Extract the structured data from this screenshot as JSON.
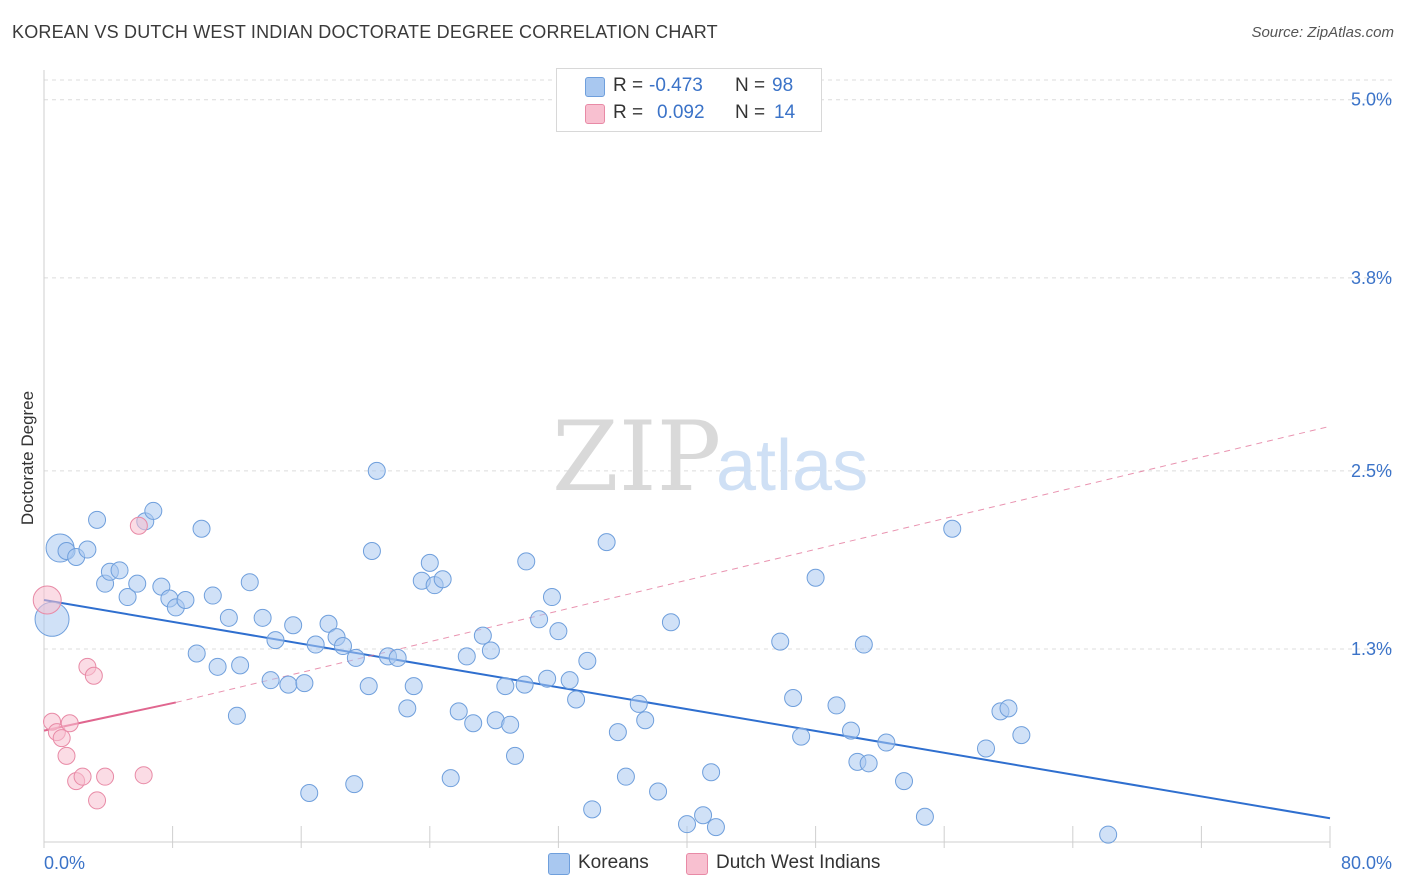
{
  "title": "KOREAN VS DUTCH WEST INDIAN DOCTORATE DEGREE CORRELATION CHART",
  "source": "Source: ZipAtlas.com",
  "watermark": {
    "zip": "ZIP",
    "atlas": "atlas"
  },
  "legend": {
    "rows": [
      {
        "r_label": "R =",
        "r_value": "-0.473",
        "n_label": "N =",
        "n_value": "98",
        "color": "#a9c8f0",
        "border": "#6f9fdc"
      },
      {
        "r_label": "R =",
        "r_value": "0.092",
        "n_label": "N =",
        "n_value": "14",
        "color": "#f8c0d0",
        "border": "#e88aa6"
      }
    ]
  },
  "bottom_legend": [
    {
      "label": "Koreans",
      "color": "#a9c8f0",
      "border": "#6f9fdc"
    },
    {
      "label": "Dutch West Indians",
      "color": "#f8c0d0",
      "border": "#e88aa6"
    }
  ],
  "chart_data": {
    "type": "scatter",
    "title": "KOREAN VS DUTCH WEST INDIAN DOCTORATE DEGREE CORRELATION CHART",
    "xlabel": "",
    "ylabel": "Doctorate Degree",
    "xlim": [
      0,
      80
    ],
    "ylim": [
      0,
      5.2
    ],
    "y_ticks": [
      {
        "value": 1.3,
        "label": "1.3%"
      },
      {
        "value": 2.5,
        "label": "2.5%"
      },
      {
        "value": 3.8,
        "label": "3.8%"
      },
      {
        "value": 5.0,
        "label": "5.0%"
      }
    ],
    "x_tick_labels": [
      {
        "value": 0,
        "label": "0.0%"
      },
      {
        "value": 80,
        "label": "80.0%"
      }
    ],
    "x_minor_ticks": [
      0,
      8,
      16,
      24,
      32,
      40,
      48,
      56,
      64,
      72,
      80
    ],
    "grid": true,
    "series": [
      {
        "name": "Koreans",
        "color": "#a9c8f0",
        "stroke": "#6f9fdc",
        "trend": {
          "x": [
            0,
            80
          ],
          "y": [
            1.63,
            0.16
          ],
          "style": "solid",
          "color": "#2f6fcf"
        },
        "points": [
          [
            0.5,
            1.5,
            "L"
          ],
          [
            1.0,
            1.98,
            "M"
          ],
          [
            1.4,
            1.96
          ],
          [
            2.0,
            1.92
          ],
          [
            2.7,
            1.97
          ],
          [
            3.3,
            2.17
          ],
          [
            3.8,
            1.74
          ],
          [
            4.1,
            1.82
          ],
          [
            4.7,
            1.83
          ],
          [
            5.2,
            1.65
          ],
          [
            5.8,
            1.74
          ],
          [
            6.3,
            2.16
          ],
          [
            6.8,
            2.23
          ],
          [
            7.3,
            1.72
          ],
          [
            7.8,
            1.64
          ],
          [
            8.2,
            1.58
          ],
          [
            8.8,
            1.63
          ],
          [
            9.5,
            1.27
          ],
          [
            9.8,
            2.11
          ],
          [
            10.5,
            1.66
          ],
          [
            10.8,
            1.18
          ],
          [
            11.5,
            1.51
          ],
          [
            12.0,
            0.85
          ],
          [
            12.2,
            1.19
          ],
          [
            12.8,
            1.75
          ],
          [
            13.6,
            1.51
          ],
          [
            14.1,
            1.09
          ],
          [
            14.4,
            1.36
          ],
          [
            15.2,
            1.06
          ],
          [
            15.5,
            1.46
          ],
          [
            16.2,
            1.07
          ],
          [
            16.5,
            0.33
          ],
          [
            16.9,
            1.33
          ],
          [
            17.7,
            1.47
          ],
          [
            18.2,
            1.38
          ],
          [
            18.6,
            1.32
          ],
          [
            19.3,
            0.39
          ],
          [
            19.4,
            1.24
          ],
          [
            20.2,
            1.05
          ],
          [
            20.4,
            1.96
          ],
          [
            20.7,
            2.5
          ],
          [
            21.4,
            1.25
          ],
          [
            22.0,
            1.24
          ],
          [
            22.6,
            0.9
          ],
          [
            23.0,
            1.05
          ],
          [
            23.5,
            1.76
          ],
          [
            24.0,
            1.88
          ],
          [
            24.3,
            1.73
          ],
          [
            24.8,
            1.77
          ],
          [
            25.3,
            0.43
          ],
          [
            25.8,
            0.88
          ],
          [
            26.3,
            1.25
          ],
          [
            26.7,
            0.8
          ],
          [
            27.3,
            1.39
          ],
          [
            27.8,
            1.29
          ],
          [
            28.1,
            0.82
          ],
          [
            28.7,
            1.05
          ],
          [
            29.0,
            0.79
          ],
          [
            29.3,
            0.58
          ],
          [
            29.9,
            1.06
          ],
          [
            30.0,
            1.89
          ],
          [
            30.8,
            1.5
          ],
          [
            31.3,
            1.1
          ],
          [
            31.6,
            1.65
          ],
          [
            32.0,
            1.42
          ],
          [
            32.7,
            1.09
          ],
          [
            33.1,
            0.96
          ],
          [
            33.8,
            1.22
          ],
          [
            34.1,
            0.22
          ],
          [
            35.0,
            2.02
          ],
          [
            35.7,
            0.74
          ],
          [
            36.2,
            0.44
          ],
          [
            37.0,
            0.93
          ],
          [
            37.4,
            0.82
          ],
          [
            38.2,
            0.34
          ],
          [
            39.0,
            1.48
          ],
          [
            40.0,
            0.12
          ],
          [
            41.0,
            0.18
          ],
          [
            41.5,
            0.47
          ],
          [
            41.8,
            0.1
          ],
          [
            45.8,
            1.35
          ],
          [
            46.6,
            0.97
          ],
          [
            47.1,
            0.71
          ],
          [
            48.0,
            1.78
          ],
          [
            49.3,
            0.92
          ],
          [
            50.2,
            0.75
          ],
          [
            50.6,
            0.54
          ],
          [
            51.0,
            1.33
          ],
          [
            51.3,
            0.53
          ],
          [
            52.4,
            0.67
          ],
          [
            53.5,
            0.41
          ],
          [
            54.8,
            0.17
          ],
          [
            56.5,
            2.11
          ],
          [
            58.6,
            0.63
          ],
          [
            59.5,
            0.88
          ],
          [
            60.0,
            0.9
          ],
          [
            60.8,
            0.72
          ],
          [
            66.2,
            0.05
          ]
        ]
      },
      {
        "name": "Dutch West Indians",
        "color": "#f8c0d0",
        "stroke": "#e88aa6",
        "trend": {
          "x": [
            0,
            8.2
          ],
          "y": [
            0.75,
            0.94
          ],
          "style": "solid",
          "color": "#e0668f",
          "extended": {
            "x": [
              8.2,
              80
            ],
            "y": [
              0.94,
              2.8
            ],
            "style": "dashed"
          }
        },
        "points": [
          [
            0.2,
            1.63,
            "M"
          ],
          [
            0.5,
            0.81
          ],
          [
            0.8,
            0.74
          ],
          [
            1.1,
            0.7
          ],
          [
            1.4,
            0.58
          ],
          [
            1.6,
            0.8
          ],
          [
            2.0,
            0.41
          ],
          [
            2.4,
            0.44
          ],
          [
            2.7,
            1.18
          ],
          [
            3.1,
            1.12
          ],
          [
            3.3,
            0.28
          ],
          [
            3.8,
            0.44
          ],
          [
            5.9,
            2.13
          ],
          [
            6.2,
            0.45
          ]
        ]
      }
    ]
  }
}
